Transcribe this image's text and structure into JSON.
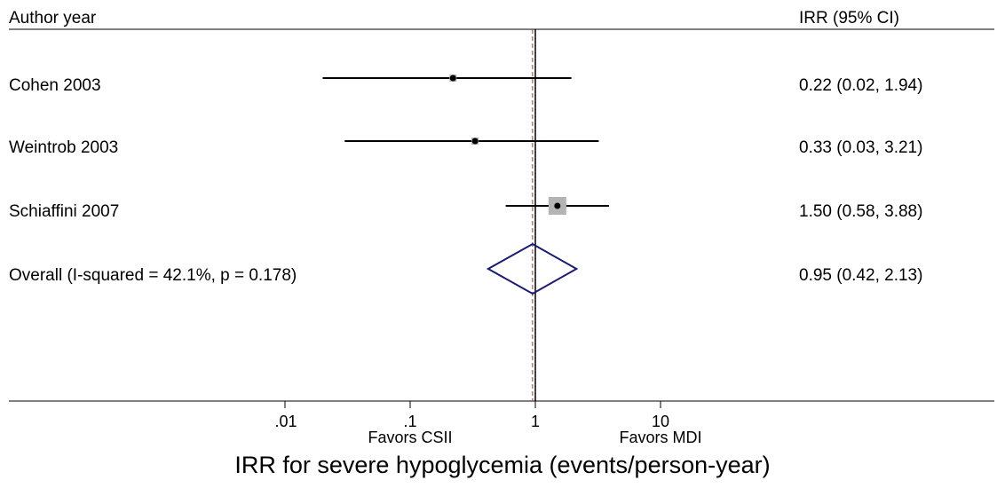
{
  "chart_data": {
    "type": "forest",
    "header_left": "Author year",
    "header_right": "IRR (95% CI)",
    "studies": [
      {
        "label": "Cohen 2003",
        "estimate": 0.22,
        "ci_low": 0.02,
        "ci_high": 1.94,
        "text": "0.22 (0.02, 1.94)",
        "weight": "small"
      },
      {
        "label": "Weintrob 2003",
        "estimate": 0.33,
        "ci_low": 0.03,
        "ci_high": 3.21,
        "text": "0.33 (0.03, 3.21)",
        "weight": "small"
      },
      {
        "label": "Schiaffini 2007",
        "estimate": 1.5,
        "ci_low": 0.58,
        "ci_high": 3.88,
        "text": "1.50 (0.58, 3.88)",
        "weight": "large"
      }
    ],
    "overall": {
      "label": "Overall  (I-squared = 42.1%, p = 0.178)",
      "estimate": 0.95,
      "ci_low": 0.42,
      "ci_high": 2.13,
      "text": "0.95 (0.42, 2.13)"
    },
    "x_scale": "log",
    "xlim": [
      0.01,
      10
    ],
    "xticks": [
      {
        "value": 0.01,
        "label": ".01"
      },
      {
        "value": 0.1,
        "label": ".1"
      },
      {
        "value": 1,
        "label": "1"
      },
      {
        "value": 10,
        "label": "10"
      }
    ],
    "favors_left": "Favors CSII",
    "favors_right": "Favors MDI",
    "xlabel": "IRR for severe hypoglycemia (events/person-year)",
    "colors": {
      "line": "#000000",
      "box": "#b4b4b4",
      "diamond": "#1a1a78",
      "overall_line": "#a0384a"
    }
  }
}
